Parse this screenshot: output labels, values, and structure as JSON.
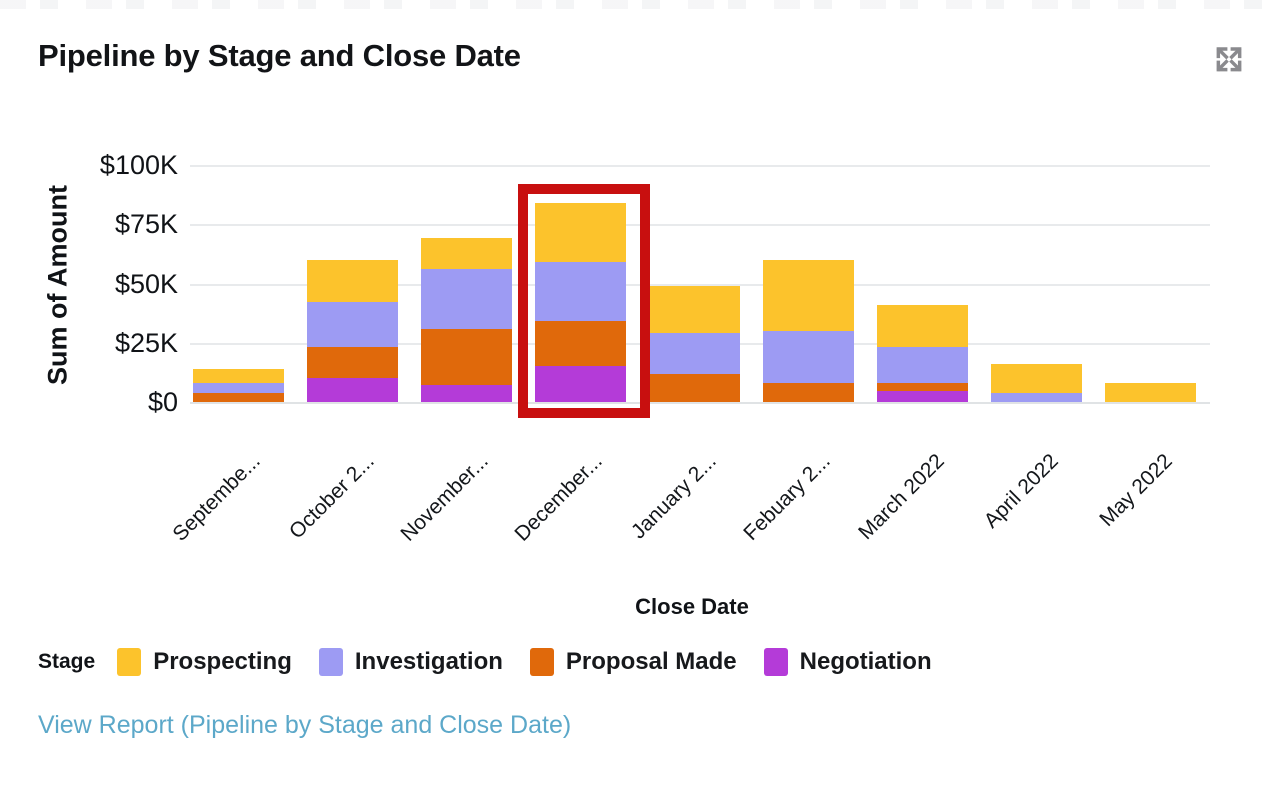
{
  "header": {
    "title": "Pipeline by Stage and Close Date",
    "expand_icon": "expand-arrows-icon"
  },
  "chart_data": {
    "type": "bar",
    "stacked": true,
    "title": "Pipeline by Stage and Close Date",
    "xlabel": "Close Date",
    "ylabel": "Sum of Amount",
    "ylim": [
      0,
      100000
    ],
    "grid": "horizontal",
    "y_ticks": [
      {
        "label": "$100K",
        "value_k": 100
      },
      {
        "label": "$75K",
        "value_k": 75
      },
      {
        "label": "$50K",
        "value_k": 50
      },
      {
        "label": "$25K",
        "value_k": 25
      },
      {
        "label": "$0",
        "value_k": 0
      }
    ],
    "categories": [
      "Septembe...",
      "October 2...",
      "November...",
      "December...",
      "January 2...",
      "Febuary 2...",
      "March 2022",
      "April 2022",
      "May 2022"
    ],
    "series": [
      {
        "name": "Prospecting",
        "color": "#fcc32c",
        "values_k": [
          6,
          18,
          13,
          25,
          20,
          30,
          18,
          12,
          8
        ]
      },
      {
        "name": "Investigation",
        "color": "#9d9bf3",
        "values_k": [
          4,
          19,
          25,
          25,
          17,
          22,
          15,
          4,
          0
        ]
      },
      {
        "name": "Proposal Made",
        "color": "#e0690b",
        "values_k": [
          4,
          13,
          24,
          19,
          12,
          8,
          3.5,
          0,
          0
        ]
      },
      {
        "name": "Negotiation",
        "color": "#b43bd8",
        "values_k": [
          0,
          10,
          7,
          15,
          0,
          0,
          4.5,
          0,
          0
        ]
      }
    ],
    "stack_order_bottom_to_top": [
      "Negotiation",
      "Proposal Made",
      "Investigation",
      "Prospecting"
    ],
    "legend": {
      "title": "Stage",
      "position": "bottom"
    },
    "highlight": {
      "category_index": 3,
      "category": "December...",
      "box_color": "#c80f0f"
    }
  },
  "footer": {
    "view_report": "View Report (Pipeline by Stage and Close Date)"
  },
  "colors": {
    "link": "#5ca8c9",
    "gridline": "#e8eaec",
    "text": "#101317",
    "icon_gray": "#8a8a8e",
    "highlight_red": "#c80f0f"
  }
}
